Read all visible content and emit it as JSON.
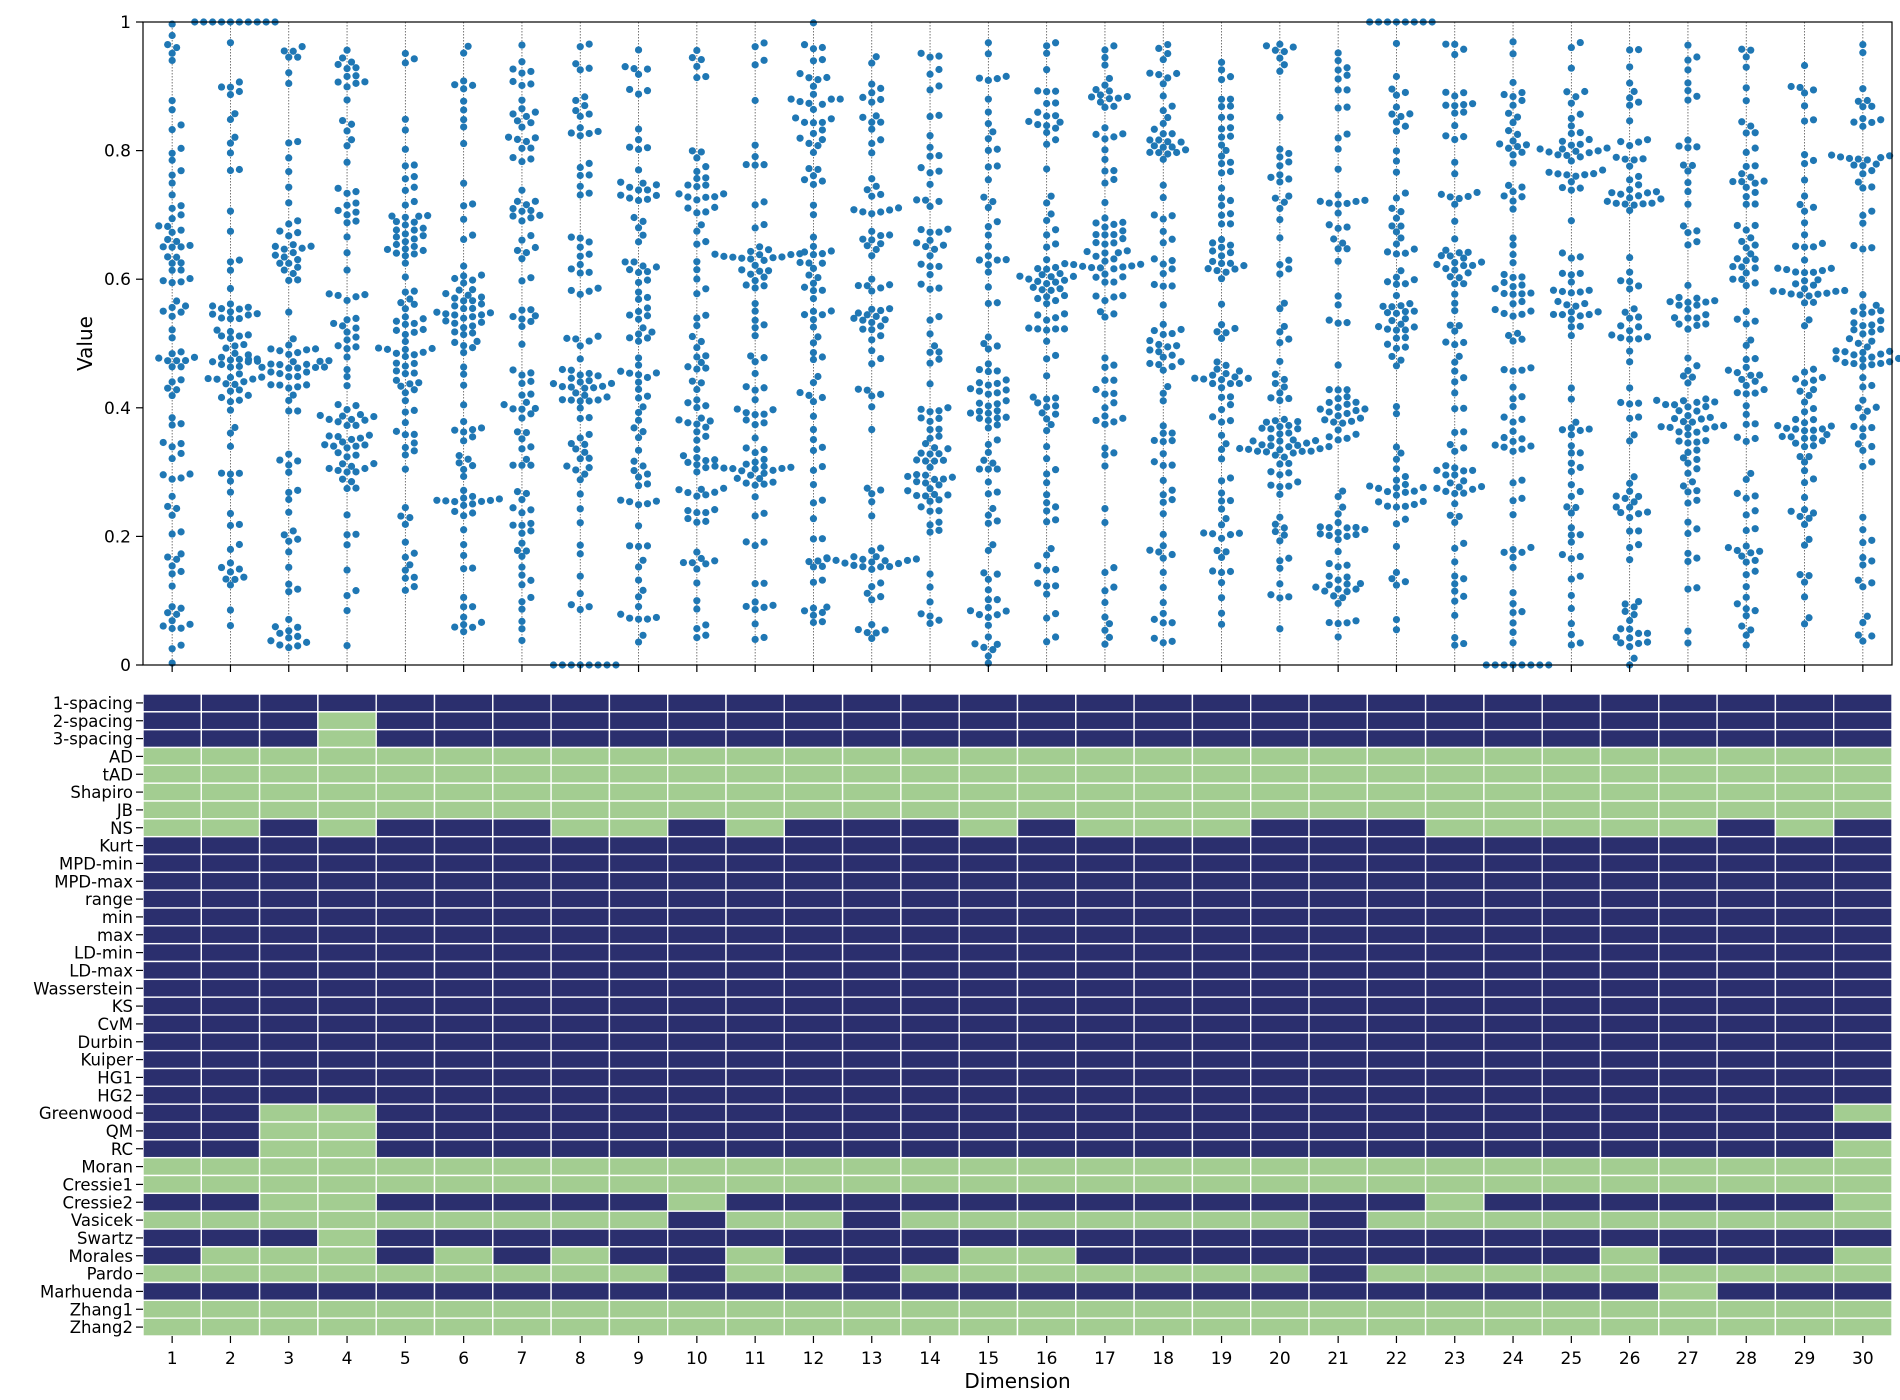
{
  "chart_data": [
    {
      "type": "swarm",
      "ylabel": "Value",
      "xlabel": "",
      "ylim": [
        0,
        1
      ],
      "yticks": [
        "0",
        "0.2",
        "0.4",
        "0.6",
        "0.8",
        "1"
      ],
      "categories": [
        "1",
        "2",
        "3",
        "4",
        "5",
        "6",
        "7",
        "8",
        "9",
        "10",
        "11",
        "12",
        "13",
        "14",
        "15",
        "16",
        "17",
        "18",
        "19",
        "20",
        "21",
        "22",
        "23",
        "24",
        "25",
        "26",
        "27",
        "28",
        "29",
        "30"
      ],
      "point_color": "#1f77b4",
      "points_per_dimension": 100,
      "guide_lines": true,
      "grid": false,
      "note_values": "values approximate: each dimension holds ~100 samples in [0,1] with visible clusters",
      "clusters": [
        [
          [
            0.0,
            1,
            18
          ],
          [
            0.3,
            0.7,
            20
          ],
          [
            0.03,
            0.97,
            40
          ],
          [
            0.0,
            1.0,
            22
          ]
        ],
        [
          [
            1.0,
            0,
            10
          ],
          [
            0.5,
            0.05,
            35
          ],
          [
            0.15,
            0.02,
            6
          ],
          [
            0.03,
            0.97,
            49
          ]
        ],
        [
          [
            0.04,
            0.01,
            9
          ],
          [
            0.47,
            0.03,
            25
          ],
          [
            0.66,
            0.02,
            12
          ],
          [
            0.03,
            0.97,
            54
          ]
        ],
        [
          [
            0.35,
            0.04,
            30
          ],
          [
            0.52,
            0.02,
            12
          ],
          [
            0.93,
            0.02,
            6
          ],
          [
            0.03,
            0.97,
            52
          ]
        ],
        [
          [
            0.5,
            0.04,
            25
          ],
          [
            0.67,
            0.03,
            20
          ],
          [
            0.03,
            0.97,
            55
          ]
        ],
        [
          [
            0.55,
            0.03,
            22
          ],
          [
            0.36,
            0.01,
            6
          ],
          [
            0.25,
            0.01,
            6
          ],
          [
            0.03,
            0.97,
            66
          ]
        ],
        [
          [
            0.37,
            0.04,
            10
          ],
          [
            0.72,
            0.02,
            8
          ],
          [
            0.03,
            0.97,
            82
          ]
        ],
        [
          [
            0.43,
            0.02,
            20
          ],
          [
            0.0,
            0,
            8
          ],
          [
            0.03,
            0.97,
            72
          ]
        ],
        [
          [
            0.55,
            0.03,
            10
          ],
          [
            0.74,
            0.02,
            8
          ],
          [
            0.03,
            0.97,
            82
          ]
        ],
        [
          [
            0.34,
            0.04,
            18
          ],
          [
            0.74,
            0.03,
            10
          ],
          [
            0.03,
            0.97,
            72
          ]
        ],
        [
          [
            0.29,
            0.02,
            18
          ],
          [
            0.62,
            0.03,
            22
          ],
          [
            0.03,
            0.97,
            60
          ]
        ],
        [
          [
            0.57,
            0.04,
            14
          ],
          [
            0.85,
            0.05,
            16
          ],
          [
            0.03,
            0.97,
            70
          ]
        ],
        [
          [
            0.16,
            0.01,
            14
          ],
          [
            0.56,
            0.02,
            12
          ],
          [
            0.03,
            0.97,
            74
          ]
        ],
        [
          [
            0.27,
            0.02,
            18
          ],
          [
            0.37,
            0.02,
            8
          ],
          [
            0.63,
            0.02,
            8
          ],
          [
            0.03,
            0.97,
            66
          ]
        ],
        [
          [
            0.4,
            0.04,
            24
          ],
          [
            0.03,
            0.03,
            8
          ],
          [
            0.03,
            0.97,
            68
          ]
        ],
        [
          [
            0.58,
            0.03,
            18
          ],
          [
            0.41,
            0.02,
            8
          ],
          [
            0.85,
            0.03,
            8
          ],
          [
            0.03,
            0.97,
            66
          ]
        ],
        [
          [
            0.63,
            0.03,
            30
          ],
          [
            0.38,
            0.01,
            6
          ],
          [
            0.03,
            0.97,
            64
          ]
        ],
        [
          [
            0.8,
            0.03,
            12
          ],
          [
            0.48,
            0.02,
            10
          ],
          [
            0.03,
            0.97,
            78
          ]
        ],
        [
          [
            0.65,
            0.03,
            10
          ],
          [
            0.45,
            0.02,
            8
          ],
          [
            0.03,
            0.97,
            82
          ]
        ],
        [
          [
            0.36,
            0.03,
            28
          ],
          [
            0.03,
            0.97,
            72
          ]
        ],
        [
          [
            0.12,
            0.01,
            10
          ],
          [
            0.21,
            0.01,
            10
          ],
          [
            0.4,
            0.03,
            18
          ],
          [
            0.03,
            0.97,
            62
          ]
        ],
        [
          [
            0.27,
            0.02,
            16
          ],
          [
            0.55,
            0.04,
            24
          ],
          [
            1.0,
            0,
            8
          ],
          [
            0.03,
            0.97,
            52
          ]
        ],
        [
          [
            0.3,
            0.02,
            10
          ],
          [
            0.62,
            0.02,
            10
          ],
          [
            0.88,
            0.01,
            6
          ],
          [
            0.03,
            0.97,
            74
          ]
        ],
        [
          [
            0.35,
            0.01,
            6
          ],
          [
            0.58,
            0.02,
            10
          ],
          [
            0.83,
            0.03,
            10
          ],
          [
            0.0,
            0,
            8
          ],
          [
            0.03,
            0.97,
            66
          ]
        ],
        [
          [
            0.8,
            0.01,
            12
          ],
          [
            0.57,
            0.02,
            10
          ],
          [
            0.03,
            0.97,
            78
          ]
        ],
        [
          [
            0.72,
            0.01,
            12
          ],
          [
            0.25,
            0.02,
            8
          ],
          [
            0.03,
            0.03,
            12
          ],
          [
            0.03,
            0.97,
            68
          ]
        ],
        [
          [
            0.38,
            0.03,
            26
          ],
          [
            0.55,
            0.02,
            8
          ],
          [
            0.03,
            0.97,
            66
          ]
        ],
        [
          [
            0.63,
            0.02,
            12
          ],
          [
            0.43,
            0.02,
            8
          ],
          [
            0.03,
            0.97,
            80
          ]
        ],
        [
          [
            0.38,
            0.04,
            20
          ],
          [
            0.6,
            0.04,
            16
          ],
          [
            0.03,
            0.97,
            64
          ]
        ],
        [
          [
            0.5,
            0.04,
            26
          ],
          [
            0.78,
            0.01,
            8
          ],
          [
            0.03,
            0.97,
            66
          ]
        ]
      ]
    },
    {
      "type": "heatmap",
      "xlabel": "Dimension",
      "ylabel": "",
      "xtick_labels": [
        "1",
        "2",
        "3",
        "4",
        "5",
        "6",
        "7",
        "8",
        "9",
        "10",
        "11",
        "12",
        "13",
        "14",
        "15",
        "16",
        "17",
        "18",
        "19",
        "20",
        "21",
        "22",
        "23",
        "24",
        "25",
        "26",
        "27",
        "28",
        "29",
        "30"
      ],
      "row_labels": [
        "1-spacing",
        "2-spacing",
        "3-spacing",
        "AD",
        "tAD",
        "Shapiro",
        "JB",
        "NS",
        "Kurt",
        "MPD-min",
        "MPD-max",
        "range",
        "min",
        "max",
        "LD-min",
        "LD-max",
        "Wasserstein",
        "KS",
        "CvM",
        "Durbin",
        "Kuiper",
        "HG1",
        "HG2",
        "Greenwood",
        "QM",
        "RC",
        "Moran",
        "Cressie1",
        "Cressie2",
        "Vasicek",
        "Swartz",
        "Morales",
        "Pardo",
        "Marhuenda",
        "Zhang1",
        "Zhang2"
      ],
      "colors": {
        "1": "#2b2f6e",
        "0": "#a3cd91",
        "gridline": "#ffffff"
      },
      "cells": [
        "111111111111111111111111111111",
        "111011111111111111111111111111",
        "111011111111111111111111111111",
        "000000000000000000000000000000",
        "000000000000000000000000000000",
        "000000000000000000000000000000",
        "000000000000000000000000000000",
        "001011100101110100011100000101",
        "111111111111111111111111111111",
        "111111111111111111111111111111",
        "111111111111111111111111111111",
        "111111111111111111111111111111",
        "111111111111111111111111111111",
        "111111111111111111111111111111",
        "111111111111111111111111111111",
        "111111111111111111111111111111",
        "111111111111111111111111111111",
        "111111111111111111111111111111",
        "111111111111111111111111111111",
        "111111111111111111111111111111",
        "111111111111111111111111111111",
        "111111111111111111111111111111",
        "111111111111111111111111111111",
        "110011111111111111111111111110",
        "110011111111111111111111111111",
        "110011111111111111111111111110",
        "000000000000000000000000000000",
        "000000000000000000000000000000",
        "110011111011111111111101111110",
        "000000000100100000001000000000",
        "111011111111111111111111111111",
        "100010101101110011111111101110",
        "000000000100100000001000000000",
        "111111111111111111111111110111",
        "000000000000000000000000000000",
        "000000000000000000000000000000"
      ]
    }
  ]
}
